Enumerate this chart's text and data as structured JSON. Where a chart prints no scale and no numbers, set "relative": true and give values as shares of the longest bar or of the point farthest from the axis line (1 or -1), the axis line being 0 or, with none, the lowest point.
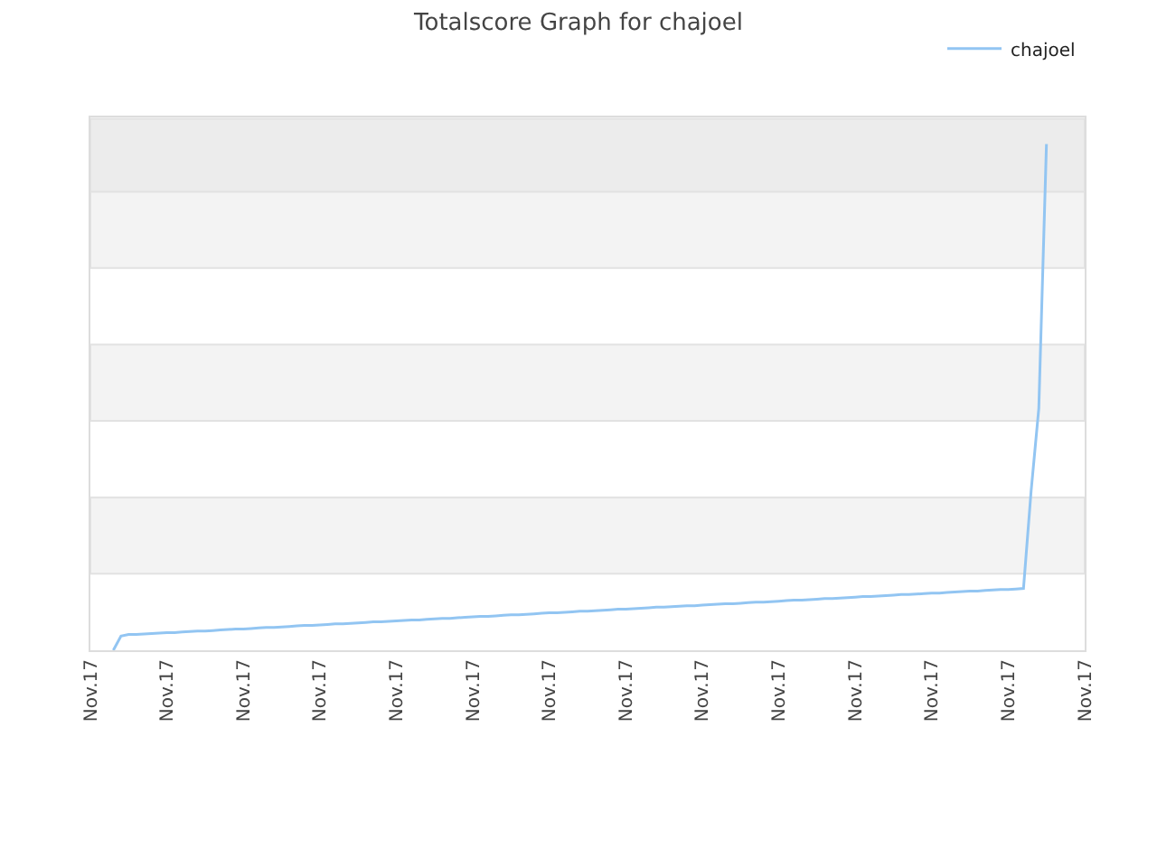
{
  "chart_data": {
    "type": "line",
    "title": "Totalscore Graph for chajoel",
    "relative": true,
    "categories": [
      "Nov.17",
      null,
      null,
      null,
      null,
      null,
      null,
      null,
      null,
      null,
      "Nov.17",
      null,
      null,
      null,
      null,
      null,
      null,
      null,
      null,
      null,
      "Nov.17",
      null,
      null,
      null,
      null,
      null,
      null,
      null,
      null,
      null,
      "Nov.17",
      null,
      null,
      null,
      null,
      null,
      null,
      null,
      null,
      null,
      "Nov.17",
      null,
      null,
      null,
      null,
      null,
      null,
      null,
      null,
      null,
      "Nov.17",
      null,
      null,
      null,
      null,
      null,
      null,
      null,
      null,
      null,
      "Nov.17",
      null,
      null,
      null,
      null,
      null,
      null,
      null,
      null,
      null,
      "Nov.17",
      null,
      null,
      null,
      null,
      null,
      null,
      null,
      null,
      null,
      "Nov.17",
      null,
      null,
      null,
      null,
      null,
      null,
      null,
      null,
      null,
      "Nov.17",
      null,
      null,
      null,
      null,
      null,
      null,
      null,
      null,
      null,
      "Nov.17",
      null,
      null,
      null,
      null,
      null,
      null,
      null,
      null,
      null,
      "Nov.17",
      null,
      null,
      null,
      null,
      null,
      null,
      null,
      null,
      null,
      "Nov.17",
      null,
      null,
      null,
      null,
      null,
      null,
      null,
      null,
      null,
      "Nov.17"
    ],
    "series": [
      {
        "name": "chajoel",
        "color": "#92c5f2",
        "values": [
          null,
          null,
          null,
          0,
          0.028,
          0.031,
          0.031,
          0.032,
          0.033,
          0.034,
          0.035,
          0.035,
          0.036,
          0.037,
          0.038,
          0.038,
          0.039,
          0.04,
          0.041,
          0.042,
          0.042,
          0.043,
          0.044,
          0.045,
          0.045,
          0.046,
          0.047,
          0.048,
          0.049,
          0.049,
          0.05,
          0.051,
          0.052,
          0.052,
          0.053,
          0.054,
          0.055,
          0.056,
          0.056,
          0.057,
          0.058,
          0.059,
          0.06,
          0.06,
          0.061,
          0.062,
          0.063,
          0.063,
          0.064,
          0.065,
          0.066,
          0.067,
          0.067,
          0.068,
          0.069,
          0.07,
          0.07,
          0.071,
          0.072,
          0.073,
          0.074,
          0.074,
          0.075,
          0.076,
          0.077,
          0.077,
          0.078,
          0.079,
          0.08,
          0.081,
          0.081,
          0.082,
          0.083,
          0.084,
          0.085,
          0.085,
          0.086,
          0.087,
          0.088,
          0.088,
          0.089,
          0.09,
          0.091,
          0.092,
          0.092,
          0.093,
          0.094,
          0.095,
          0.095,
          0.096,
          0.097,
          0.098,
          0.099,
          0.099,
          0.1,
          0.101,
          0.102,
          0.102,
          0.103,
          0.104,
          0.105,
          0.106,
          0.106,
          0.107,
          0.108,
          0.109,
          0.11,
          0.11,
          0.111,
          0.112,
          0.113,
          0.113,
          0.114,
          0.115,
          0.116,
          0.117,
          0.117,
          0.118,
          0.119,
          0.12,
          0.12,
          0.121,
          0.122,
          0.315,
          0.478,
          1.0,
          null,
          null,
          null,
          null,
          null
        ]
      }
    ],
    "bands": [
      {
        "axis": "y",
        "from": 0.151,
        "to": 0.302,
        "color": "#f3f3f3"
      },
      {
        "axis": "y",
        "from": 0.453,
        "to": 0.604,
        "color": "#f3f3f3"
      },
      {
        "axis": "y",
        "from": 0.755,
        "to": 0.906,
        "color": "#f3f3f3"
      },
      {
        "axis": "y",
        "from": 0.906,
        "to": 1.05,
        "color": "#ececec"
      }
    ],
    "legend": "top right",
    "marker": "none",
    "line_style": "solid"
  }
}
